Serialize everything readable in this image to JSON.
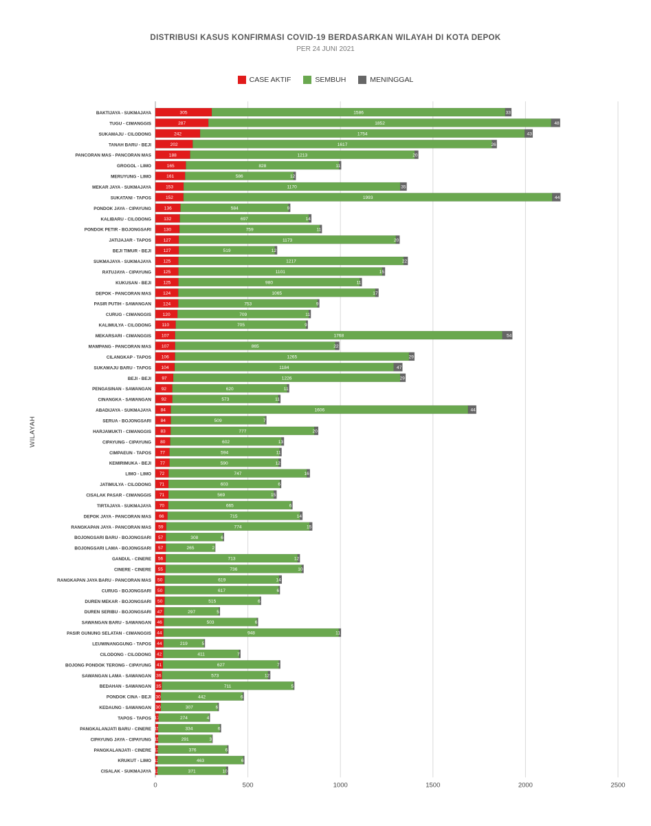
{
  "chart_data": {
    "type": "bar",
    "stacked": true,
    "orientation": "horizontal",
    "title": "DISTRIBUSI KASUS KONFIRMASI COVID-19 BERDASARKAN WILAYAH DI KOTA DEPOK",
    "subtitle": "PER 24 JUNI 2021",
    "ylabel": "WILAYAH",
    "xlabel": "",
    "xlim": [
      0,
      2500
    ],
    "xticks": [
      0,
      500,
      1000,
      1500,
      2000,
      2500
    ],
    "grid": true,
    "legend_position": "top",
    "colors": {
      "case_aktif": "#e11b1b",
      "sembuh": "#6aa84f",
      "meninggal": "#666666"
    },
    "categories": [
      "BAKTIJAYA - SUKMAJAYA",
      "TUGU - CIMANGGIS",
      "SUKAMAJU - CILODONG",
      "TANAH BARU - BEJI",
      "PANCORAN MAS - PANCORAN MAS",
      "GROGOL - LIMO",
      "MERUYUNG - LIMO",
      "MEKAR JAYA - SUKMAJAYA",
      "SUKATANI - TAPOS",
      "PONDOK JAYA - CIPAYUNG",
      "KALIBARU - CILODONG",
      "PONDOK PETIR - BOJONGSARI",
      "JATIJAJAR - TAPOS",
      "BEJI TIMUR - BEJI",
      "SUKMAJAYA - SUKMAJAYA",
      "RATUJAYA - CIPAYUNG",
      "KUKUSAN - BEJI",
      "DEPOK - PANCORAN MAS",
      "PASIR PUTIH - SAWANGAN",
      "CURUG - CIMANGGIS",
      "KALIMULYA - CILODONG",
      "MEKARSARI - CIMANGGIS",
      "MAMPANG - PANCORAN MAS",
      "CILANGKAP - TAPOS",
      "SUKAMAJU BARU - TAPOS",
      "BEJI - BEJI",
      "PENGASINAN - SAWANGAN",
      "CINANGKA - SAWANGAN",
      "ABADIJAYA - SUKMAJAYA",
      "SERUA - BOJONGSARI",
      "HARJAMUKTI - CIMANGGIS",
      "CIPAYUNG - CIPAYUNG",
      "CIMPAEUN - TAPOS",
      "KEMIRIMUKA - BEJI",
      "LIMO - LIMO",
      "JATIMULYA - CILODONG",
      "CISALAK PASAR - CIMANGGIS",
      "TIRTAJAYA - SUKMAJAYA",
      "DEPOK JAYA - PANCORAN MAS",
      "RANGKAPAN JAYA - PANCORAN MAS",
      "BOJONGSARI BARU - BOJONGSARI",
      "BOJONGSARI LAMA - BOJONGSARI",
      "GANDUL - CINERE",
      "CINERE - CINERE",
      "RANGKAPAN JAYA BARU - PANCORAN MAS",
      "CURUG - BOJONGSARI",
      "DUREN MEKAR - BOJONGSARI",
      "DUREN SERIBU - BOJONGSARI",
      "SAWANGAN BARU - SAWANGAN",
      "PASIR GUNUNG SELATAN - CIMANGGIS",
      "LEUWINANGGUNG - TAPOS",
      "CILODONG - CILODONG",
      "BOJONG PONDOK TERONG - CIPAYUNG",
      "SAWANGAN LAMA - SAWANGAN",
      "BEDAHAN - SAWANGAN",
      "PONDOK CINA - BEJI",
      "KEDAUNG - SAWANGAN",
      "TAPOS - TAPOS",
      "PANGKALANJATI BARU - CINERE",
      "CIPAYUNG JAYA - CIPAYUNG",
      "PANGKALANJATI - CINERE",
      "KRUKUT - LIMO",
      "CISALAK - SUKMAJAYA"
    ],
    "series": [
      {
        "name": "CASE AKTIF",
        "values": [
          305,
          287,
          242,
          202,
          188,
          165,
          161,
          153,
          152,
          136,
          132,
          130,
          127,
          127,
          125,
          125,
          125,
          124,
          124,
          120,
          110,
          107,
          107,
          106,
          104,
          97,
          92,
          92,
          84,
          84,
          83,
          80,
          77,
          77,
          72,
          71,
          71,
          70,
          66,
          59,
          57,
          57,
          56,
          55,
          50,
          50,
          50,
          47,
          46,
          44,
          44,
          42,
          41,
          36,
          35,
          30,
          30,
          17,
          15,
          15,
          13,
          12,
          12
        ]
      },
      {
        "name": "SEMBUH",
        "values": [
          1586,
          1852,
          1754,
          1617,
          1213,
          828,
          586,
          1170,
          1993,
          584,
          697,
          759,
          1173,
          519,
          1217,
          1101,
          980,
          1065,
          753,
          709,
          705,
          1768,
          865,
          1265,
          1184,
          1226,
          620,
          573,
          1606,
          509,
          777,
          602,
          594,
          590,
          747,
          603,
          569,
          665,
          715,
          774,
          308,
          265,
          713,
          736,
          619,
          617,
          515,
          297,
          503,
          948,
          219,
          411,
          627,
          573,
          711,
          442,
          307,
          274,
          334,
          291,
          376,
          463,
          371
        ]
      },
      {
        "name": "MENINGGAL",
        "values": [
          33,
          48,
          43,
          26,
          20,
          11,
          12,
          35,
          44,
          9,
          14,
          11,
          20,
          12,
          22,
          15,
          11,
          17,
          9,
          11,
          9,
          54,
          22,
          29,
          47,
          29,
          11,
          11,
          44,
          7,
          20,
          13,
          11,
          12,
          16,
          6,
          15,
          6,
          14,
          15,
          6,
          2,
          12,
          10,
          14,
          6,
          6,
          5,
          6,
          11,
          5,
          7,
          7,
          12,
          5,
          6,
          6,
          4,
          6,
          3,
          6,
          6,
          10
        ]
      }
    ]
  }
}
